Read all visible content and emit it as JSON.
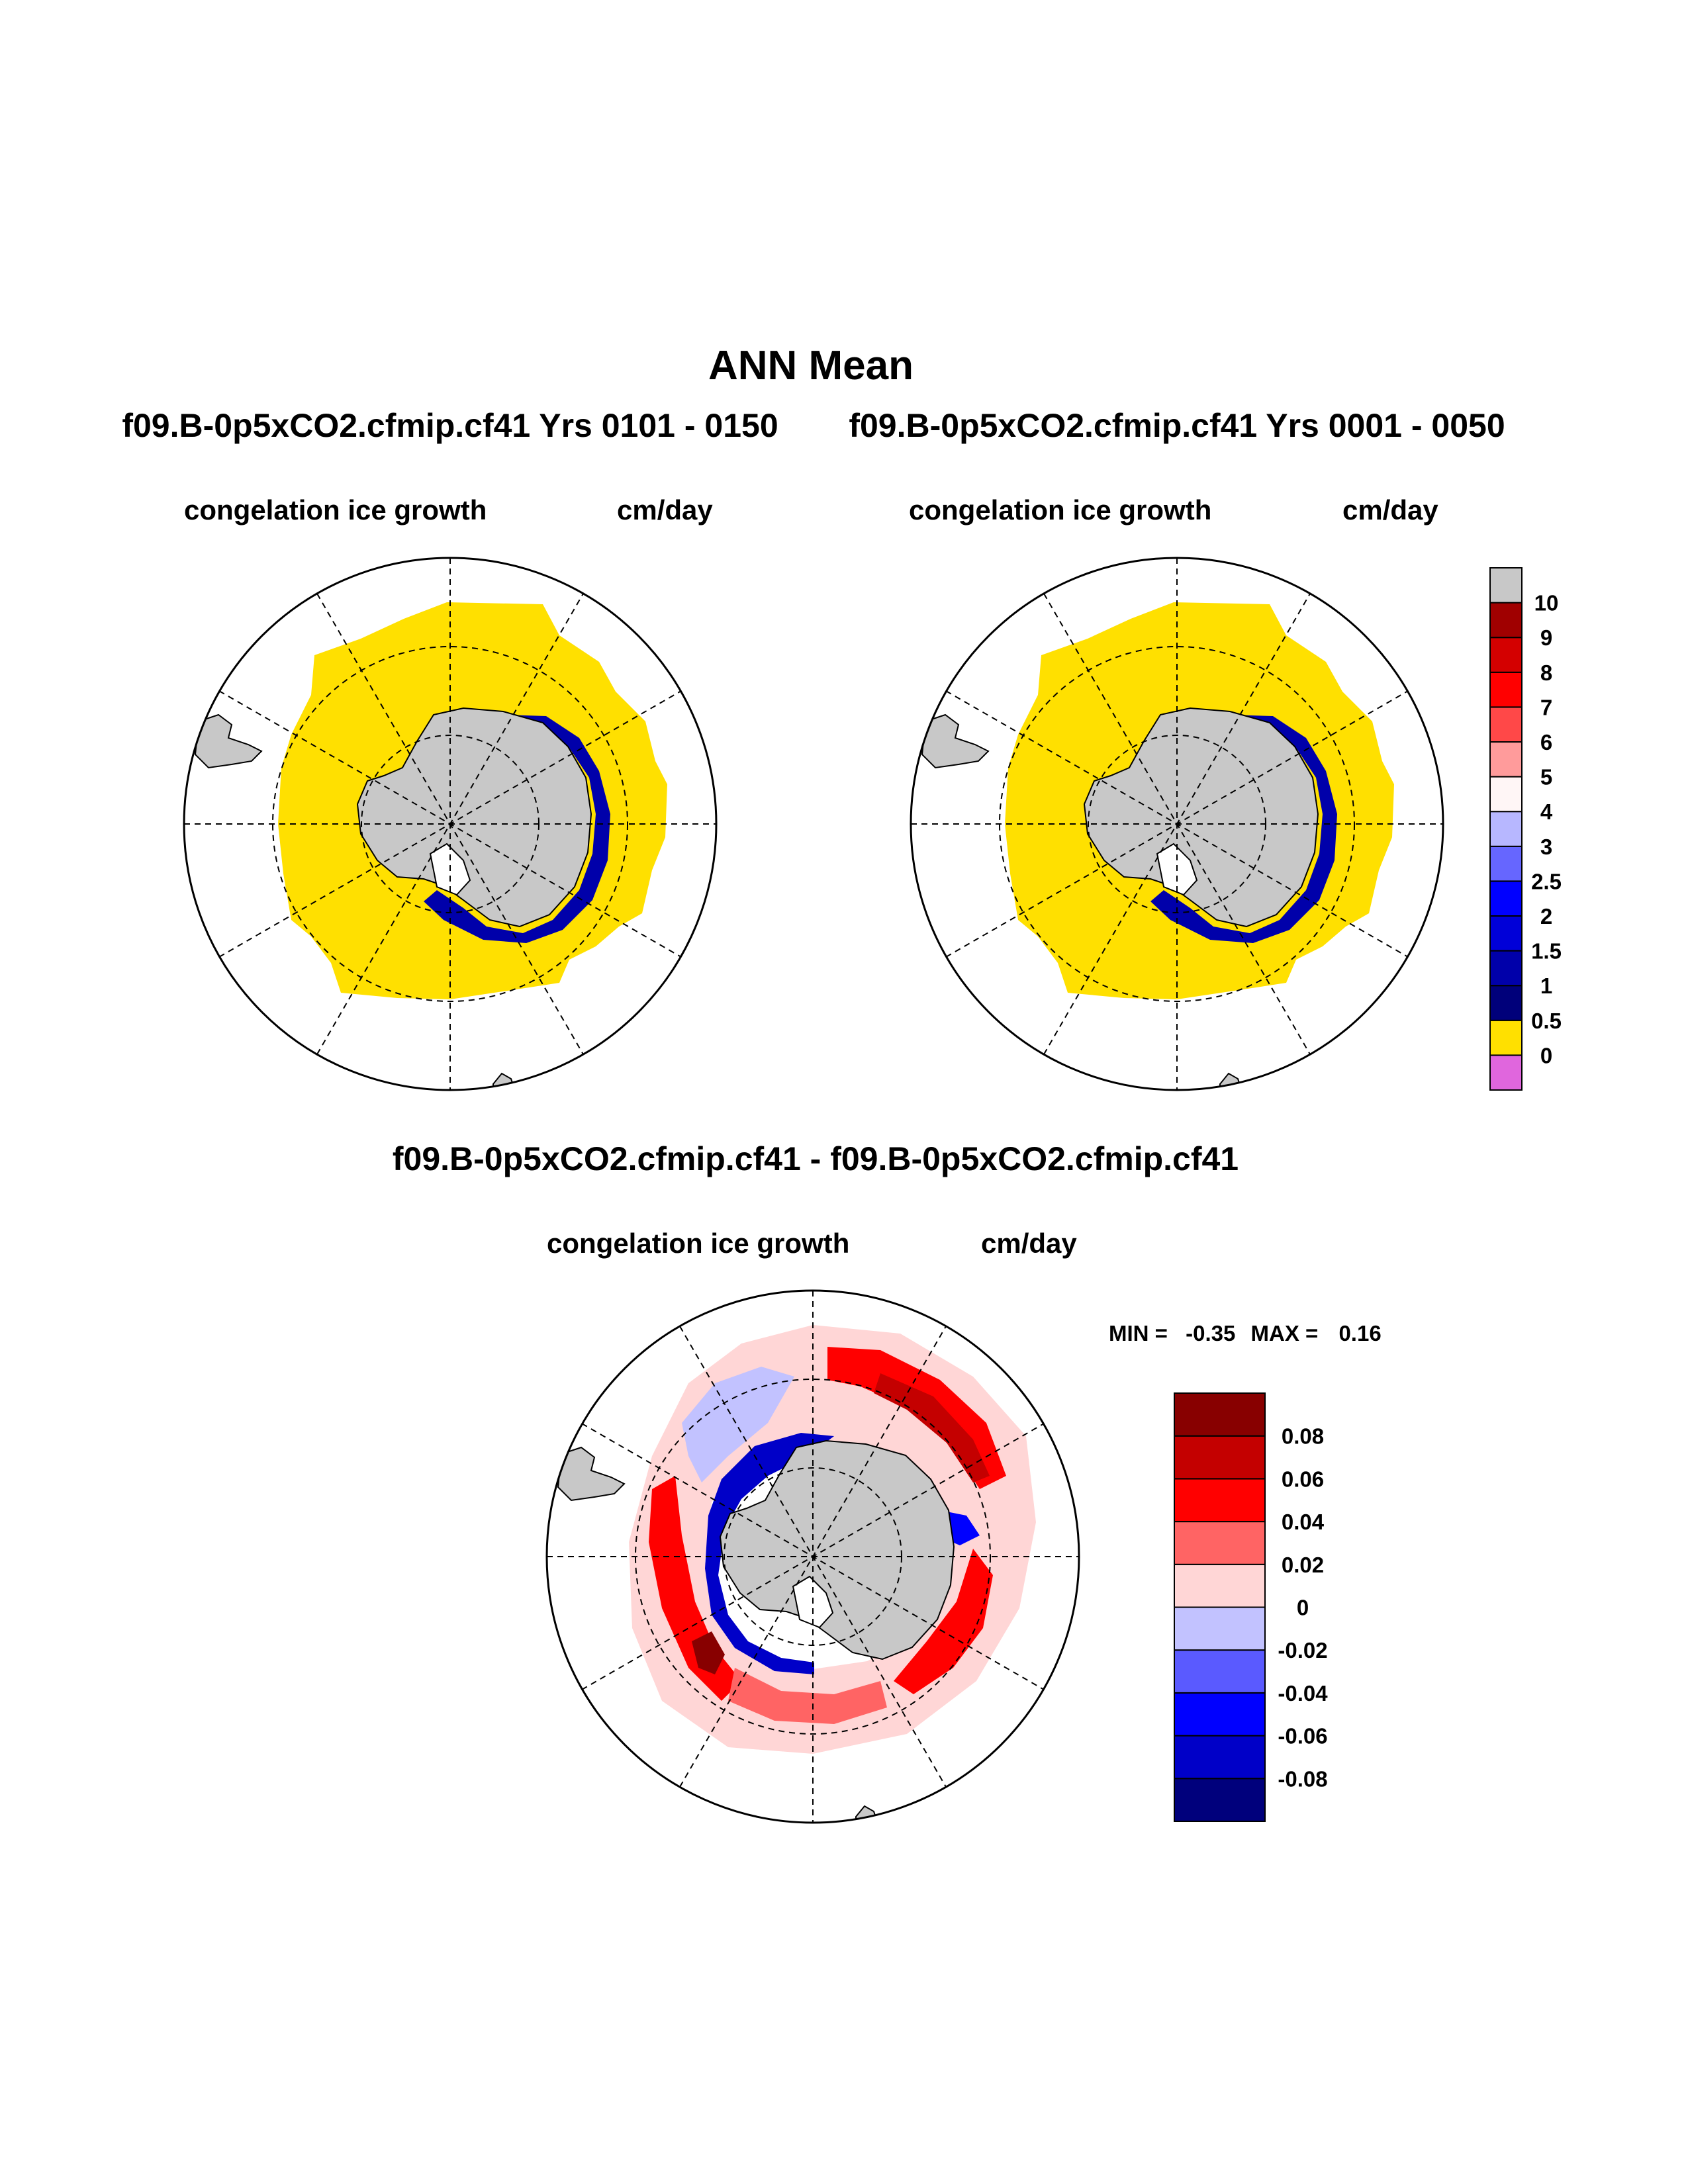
{
  "chart_data": {
    "type": "heatmap",
    "title": "ANN Mean",
    "panels": [
      {
        "id": "case1",
        "case_label": "f09.B-0p5xCO2.cfmip.cf41  Yrs 0101 - 0150",
        "variable": "congelation ice growth",
        "units": "cm/day",
        "projection": "south-polar-stereographic"
      },
      {
        "id": "case2",
        "case_label": "f09.B-0p5xCO2.cfmip.cf41  Yrs 0001 - 0050",
        "variable": "congelation ice growth",
        "units": "cm/day",
        "projection": "south-polar-stereographic"
      },
      {
        "id": "diff",
        "case_label": "f09.B-0p5xCO2.cfmip.cf41 - f09.B-0p5xCO2.cfmip.cf41",
        "variable": "congelation ice growth",
        "units": "cm/day",
        "projection": "south-polar-stereographic",
        "min_label": "MIN =",
        "min": -0.35,
        "max_label": "MAX =",
        "max": 0.16,
        "min_text": "-0.35",
        "max_text": "0.16"
      }
    ],
    "colorbar_top": {
      "levels": [
        "0",
        "0.5",
        "1",
        "1.5",
        "2",
        "2.5",
        "3",
        "4",
        "5",
        "6",
        "7",
        "8",
        "9",
        "10"
      ],
      "colors": [
        "#e066dd",
        "#ffe000",
        "#00007a",
        "#0000aa",
        "#0000d8",
        "#0000ff",
        "#6666ff",
        "#b7b7ff",
        "#fff6f6",
        "#ff9b9b",
        "#ff4848",
        "#ff0000",
        "#d40000",
        "#a00000",
        "#c8c8c8"
      ]
    },
    "colorbar_diff": {
      "levels": [
        "-0.08",
        "-0.06",
        "-0.04",
        "-0.02",
        "0",
        "0.02",
        "0.04",
        "0.06",
        "0.08"
      ],
      "colors": [
        "#00007c",
        "#0000c8",
        "#0000ff",
        "#5a5aff",
        "#c2c2ff",
        "#ffd6d6",
        "#ff6464",
        "#ff0000",
        "#c40000",
        "#880000"
      ]
    }
  }
}
